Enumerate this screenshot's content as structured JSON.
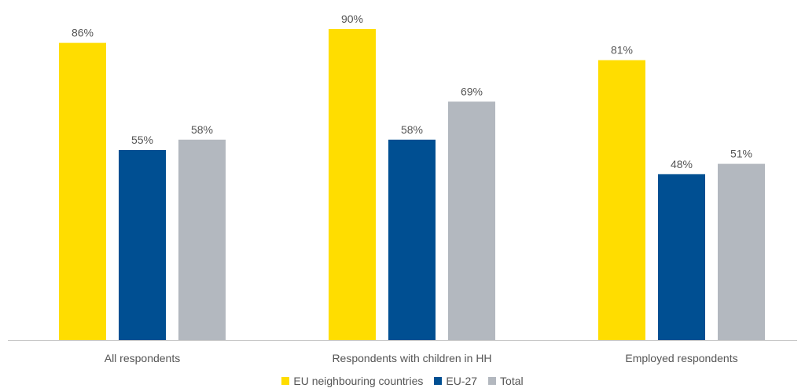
{
  "chart_data": {
    "type": "bar",
    "categories": [
      "All respondents",
      "Respondents with children in HH",
      "Employed respondents"
    ],
    "series": [
      {
        "name": "EU neighbouring countries",
        "values": [
          86,
          90,
          81
        ],
        "color": "#FFDD00"
      },
      {
        "name": "EU-27",
        "values": [
          55,
          58,
          48
        ],
        "color": "#004F92"
      },
      {
        "name": "Total",
        "values": [
          58,
          69,
          51
        ],
        "color": "#B3B8BF"
      }
    ],
    "value_suffix": "%",
    "ylim": [
      0,
      100
    ],
    "grid": false,
    "legend_position": "bottom"
  }
}
